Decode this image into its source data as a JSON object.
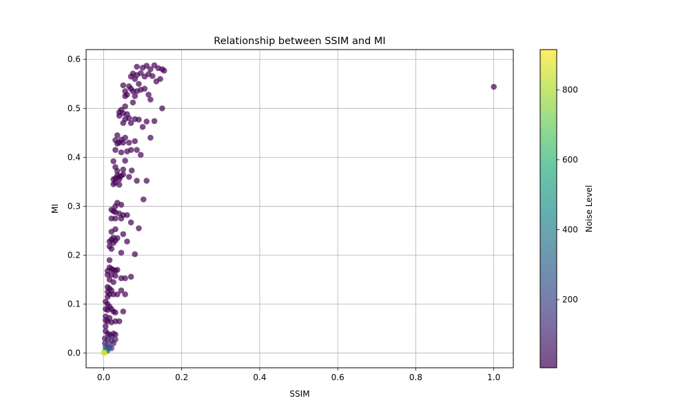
{
  "chart_data": {
    "type": "scatter",
    "title": "Relationship between SSIM and MI",
    "xlabel": "SSIM",
    "ylabel": "MI",
    "xlim": [
      -0.045,
      1.05
    ],
    "ylim": [
      -0.03,
      0.62
    ],
    "xticks": [
      0.0,
      0.2,
      0.4,
      0.6,
      0.8,
      1.0
    ],
    "yticks": [
      0.0,
      0.1,
      0.2,
      0.3,
      0.4,
      0.5,
      0.6
    ],
    "grid": true,
    "colorbar": {
      "label": "Noise Level",
      "range": [
        5,
        915
      ],
      "ticks": [
        200,
        400,
        600,
        800
      ],
      "colormap": "viridis"
    },
    "marker_alpha": 0.7,
    "points": [
      {
        "x": 1.0,
        "y": 0.544,
        "c": 5
      },
      {
        "x": 0.085,
        "y": 0.585,
        "c": 5
      },
      {
        "x": 0.1,
        "y": 0.583,
        "c": 5
      },
      {
        "x": 0.11,
        "y": 0.587,
        "c": 5
      },
      {
        "x": 0.12,
        "y": 0.58,
        "c": 5
      },
      {
        "x": 0.13,
        "y": 0.588,
        "c": 5
      },
      {
        "x": 0.14,
        "y": 0.582,
        "c": 5
      },
      {
        "x": 0.15,
        "y": 0.58,
        "c": 5
      },
      {
        "x": 0.155,
        "y": 0.577,
        "c": 5
      },
      {
        "x": 0.145,
        "y": 0.56,
        "c": 5
      },
      {
        "x": 0.135,
        "y": 0.555,
        "c": 5
      },
      {
        "x": 0.125,
        "y": 0.566,
        "c": 5
      },
      {
        "x": 0.115,
        "y": 0.57,
        "c": 5
      },
      {
        "x": 0.105,
        "y": 0.565,
        "c": 5
      },
      {
        "x": 0.095,
        "y": 0.572,
        "c": 5
      },
      {
        "x": 0.085,
        "y": 0.568,
        "c": 5
      },
      {
        "x": 0.075,
        "y": 0.571,
        "c": 5
      },
      {
        "x": 0.07,
        "y": 0.565,
        "c": 5
      },
      {
        "x": 0.08,
        "y": 0.56,
        "c": 5
      },
      {
        "x": 0.09,
        "y": 0.55,
        "c": 5
      },
      {
        "x": 0.065,
        "y": 0.545,
        "c": 5
      },
      {
        "x": 0.07,
        "y": 0.54,
        "c": 5
      },
      {
        "x": 0.075,
        "y": 0.535,
        "c": 5
      },
      {
        "x": 0.085,
        "y": 0.535,
        "c": 5
      },
      {
        "x": 0.095,
        "y": 0.538,
        "c": 5
      },
      {
        "x": 0.105,
        "y": 0.54,
        "c": 5
      },
      {
        "x": 0.115,
        "y": 0.528,
        "c": 5
      },
      {
        "x": 0.12,
        "y": 0.518,
        "c": 5
      },
      {
        "x": 0.05,
        "y": 0.547,
        "c": 5
      },
      {
        "x": 0.055,
        "y": 0.535,
        "c": 5
      },
      {
        "x": 0.06,
        "y": 0.528,
        "c": 5
      },
      {
        "x": 0.055,
        "y": 0.525,
        "c": 5
      },
      {
        "x": 0.08,
        "y": 0.525,
        "c": 5
      },
      {
        "x": 0.075,
        "y": 0.512,
        "c": 5
      },
      {
        "x": 0.055,
        "y": 0.504,
        "c": 5
      },
      {
        "x": 0.045,
        "y": 0.497,
        "c": 5
      },
      {
        "x": 0.04,
        "y": 0.492,
        "c": 5
      },
      {
        "x": 0.05,
        "y": 0.49,
        "c": 5
      },
      {
        "x": 0.04,
        "y": 0.485,
        "c": 5
      },
      {
        "x": 0.06,
        "y": 0.488,
        "c": 5
      },
      {
        "x": 0.065,
        "y": 0.48,
        "c": 5
      },
      {
        "x": 0.055,
        "y": 0.478,
        "c": 5
      },
      {
        "x": 0.05,
        "y": 0.47,
        "c": 5
      },
      {
        "x": 0.07,
        "y": 0.47,
        "c": 5
      },
      {
        "x": 0.08,
        "y": 0.478,
        "c": 5
      },
      {
        "x": 0.09,
        "y": 0.477,
        "c": 5
      },
      {
        "x": 0.1,
        "y": 0.462,
        "c": 5
      },
      {
        "x": 0.11,
        "y": 0.473,
        "c": 5
      },
      {
        "x": 0.13,
        "y": 0.474,
        "c": 5
      },
      {
        "x": 0.15,
        "y": 0.5,
        "c": 5
      },
      {
        "x": 0.12,
        "y": 0.44,
        "c": 5
      },
      {
        "x": 0.035,
        "y": 0.445,
        "c": 5
      },
      {
        "x": 0.03,
        "y": 0.435,
        "c": 5
      },
      {
        "x": 0.035,
        "y": 0.428,
        "c": 5
      },
      {
        "x": 0.04,
        "y": 0.43,
        "c": 5
      },
      {
        "x": 0.045,
        "y": 0.436,
        "c": 5
      },
      {
        "x": 0.05,
        "y": 0.43,
        "c": 5
      },
      {
        "x": 0.055,
        "y": 0.44,
        "c": 5
      },
      {
        "x": 0.065,
        "y": 0.43,
        "c": 5
      },
      {
        "x": 0.08,
        "y": 0.433,
        "c": 5
      },
      {
        "x": 0.045,
        "y": 0.41,
        "c": 5
      },
      {
        "x": 0.06,
        "y": 0.412,
        "c": 5
      },
      {
        "x": 0.07,
        "y": 0.415,
        "c": 5
      },
      {
        "x": 0.085,
        "y": 0.415,
        "c": 5
      },
      {
        "x": 0.095,
        "y": 0.405,
        "c": 5
      },
      {
        "x": 0.03,
        "y": 0.415,
        "c": 5
      },
      {
        "x": 0.025,
        "y": 0.392,
        "c": 5
      },
      {
        "x": 0.055,
        "y": 0.393,
        "c": 5
      },
      {
        "x": 0.03,
        "y": 0.38,
        "c": 5
      },
      {
        "x": 0.035,
        "y": 0.372,
        "c": 5
      },
      {
        "x": 0.05,
        "y": 0.375,
        "c": 5
      },
      {
        "x": 0.072,
        "y": 0.373,
        "c": 5
      },
      {
        "x": 0.035,
        "y": 0.363,
        "c": 5
      },
      {
        "x": 0.04,
        "y": 0.36,
        "c": 5
      },
      {
        "x": 0.045,
        "y": 0.362,
        "c": 5
      },
      {
        "x": 0.05,
        "y": 0.365,
        "c": 5
      },
      {
        "x": 0.03,
        "y": 0.357,
        "c": 5
      },
      {
        "x": 0.025,
        "y": 0.355,
        "c": 5
      },
      {
        "x": 0.04,
        "y": 0.355,
        "c": 5
      },
      {
        "x": 0.03,
        "y": 0.348,
        "c": 5
      },
      {
        "x": 0.025,
        "y": 0.345,
        "c": 5
      },
      {
        "x": 0.04,
        "y": 0.344,
        "c": 5
      },
      {
        "x": 0.065,
        "y": 0.36,
        "c": 5
      },
      {
        "x": 0.085,
        "y": 0.352,
        "c": 5
      },
      {
        "x": 0.11,
        "y": 0.352,
        "c": 5
      },
      {
        "x": 0.102,
        "y": 0.314,
        "c": 5
      },
      {
        "x": 0.035,
        "y": 0.307,
        "c": 5
      },
      {
        "x": 0.045,
        "y": 0.303,
        "c": 5
      },
      {
        "x": 0.03,
        "y": 0.3,
        "c": 5
      },
      {
        "x": 0.02,
        "y": 0.293,
        "c": 5
      },
      {
        "x": 0.025,
        "y": 0.29,
        "c": 5
      },
      {
        "x": 0.03,
        "y": 0.288,
        "c": 5
      },
      {
        "x": 0.04,
        "y": 0.285,
        "c": 5
      },
      {
        "x": 0.05,
        "y": 0.282,
        "c": 5
      },
      {
        "x": 0.06,
        "y": 0.282,
        "c": 5
      },
      {
        "x": 0.02,
        "y": 0.275,
        "c": 5
      },
      {
        "x": 0.03,
        "y": 0.275,
        "c": 5
      },
      {
        "x": 0.045,
        "y": 0.275,
        "c": 5
      },
      {
        "x": 0.07,
        "y": 0.267,
        "c": 5
      },
      {
        "x": 0.09,
        "y": 0.255,
        "c": 5
      },
      {
        "x": 0.03,
        "y": 0.253,
        "c": 5
      },
      {
        "x": 0.02,
        "y": 0.248,
        "c": 5
      },
      {
        "x": 0.05,
        "y": 0.243,
        "c": 5
      },
      {
        "x": 0.025,
        "y": 0.236,
        "c": 5
      },
      {
        "x": 0.035,
        "y": 0.235,
        "c": 5
      },
      {
        "x": 0.02,
        "y": 0.232,
        "c": 5
      },
      {
        "x": 0.015,
        "y": 0.228,
        "c": 5
      },
      {
        "x": 0.025,
        "y": 0.225,
        "c": 5
      },
      {
        "x": 0.03,
        "y": 0.23,
        "c": 5
      },
      {
        "x": 0.06,
        "y": 0.228,
        "c": 5
      },
      {
        "x": 0.015,
        "y": 0.218,
        "c": 5
      },
      {
        "x": 0.02,
        "y": 0.213,
        "c": 5
      },
      {
        "x": 0.045,
        "y": 0.205,
        "c": 5
      },
      {
        "x": 0.08,
        "y": 0.202,
        "c": 5
      },
      {
        "x": 0.015,
        "y": 0.19,
        "c": 5
      },
      {
        "x": 0.015,
        "y": 0.175,
        "c": 5
      },
      {
        "x": 0.02,
        "y": 0.172,
        "c": 5
      },
      {
        "x": 0.025,
        "y": 0.17,
        "c": 5
      },
      {
        "x": 0.03,
        "y": 0.168,
        "c": 5
      },
      {
        "x": 0.035,
        "y": 0.17,
        "c": 5
      },
      {
        "x": 0.01,
        "y": 0.168,
        "c": 5
      },
      {
        "x": 0.01,
        "y": 0.16,
        "c": 5
      },
      {
        "x": 0.02,
        "y": 0.16,
        "c": 5
      },
      {
        "x": 0.03,
        "y": 0.158,
        "c": 5
      },
      {
        "x": 0.045,
        "y": 0.153,
        "c": 5
      },
      {
        "x": 0.055,
        "y": 0.153,
        "c": 5
      },
      {
        "x": 0.07,
        "y": 0.156,
        "c": 5
      },
      {
        "x": 0.015,
        "y": 0.15,
        "c": 5
      },
      {
        "x": 0.025,
        "y": 0.145,
        "c": 5
      },
      {
        "x": 0.01,
        "y": 0.135,
        "c": 5
      },
      {
        "x": 0.015,
        "y": 0.132,
        "c": 5
      },
      {
        "x": 0.02,
        "y": 0.128,
        "c": 5
      },
      {
        "x": 0.01,
        "y": 0.125,
        "c": 5
      },
      {
        "x": 0.015,
        "y": 0.12,
        "c": 5
      },
      {
        "x": 0.025,
        "y": 0.12,
        "c": 5
      },
      {
        "x": 0.035,
        "y": 0.12,
        "c": 5
      },
      {
        "x": 0.045,
        "y": 0.128,
        "c": 5
      },
      {
        "x": 0.055,
        "y": 0.12,
        "c": 5
      },
      {
        "x": 0.01,
        "y": 0.115,
        "c": 5
      },
      {
        "x": 0.005,
        "y": 0.105,
        "c": 5
      },
      {
        "x": 0.01,
        "y": 0.1,
        "c": 5
      },
      {
        "x": 0.015,
        "y": 0.095,
        "c": 5
      },
      {
        "x": 0.005,
        "y": 0.09,
        "c": 5
      },
      {
        "x": 0.01,
        "y": 0.088,
        "c": 5
      },
      {
        "x": 0.02,
        "y": 0.09,
        "c": 5
      },
      {
        "x": 0.025,
        "y": 0.085,
        "c": 5
      },
      {
        "x": 0.03,
        "y": 0.083,
        "c": 5
      },
      {
        "x": 0.05,
        "y": 0.085,
        "c": 5
      },
      {
        "x": 0.005,
        "y": 0.075,
        "c": 5
      },
      {
        "x": 0.015,
        "y": 0.072,
        "c": 5
      },
      {
        "x": 0.005,
        "y": 0.067,
        "c": 5
      },
      {
        "x": 0.01,
        "y": 0.065,
        "c": 5
      },
      {
        "x": 0.02,
        "y": 0.063,
        "c": 5
      },
      {
        "x": 0.03,
        "y": 0.065,
        "c": 5
      },
      {
        "x": 0.04,
        "y": 0.065,
        "c": 5
      },
      {
        "x": 0.005,
        "y": 0.055,
        "c": 10
      },
      {
        "x": 0.005,
        "y": 0.045,
        "c": 20
      },
      {
        "x": 0.01,
        "y": 0.04,
        "c": 25
      },
      {
        "x": 0.015,
        "y": 0.038,
        "c": 30
      },
      {
        "x": 0.02,
        "y": 0.035,
        "c": 35
      },
      {
        "x": 0.025,
        "y": 0.04,
        "c": 30
      },
      {
        "x": 0.03,
        "y": 0.038,
        "c": 35
      },
      {
        "x": 0.003,
        "y": 0.03,
        "c": 60
      },
      {
        "x": 0.01,
        "y": 0.028,
        "c": 60
      },
      {
        "x": 0.02,
        "y": 0.025,
        "c": 70
      },
      {
        "x": 0.025,
        "y": 0.02,
        "c": 80
      },
      {
        "x": 0.03,
        "y": 0.028,
        "c": 70
      },
      {
        "x": 0.003,
        "y": 0.02,
        "c": 110
      },
      {
        "x": 0.01,
        "y": 0.018,
        "c": 120
      },
      {
        "x": 0.015,
        "y": 0.012,
        "c": 150
      },
      {
        "x": 0.02,
        "y": 0.01,
        "c": 170
      },
      {
        "x": 0.005,
        "y": 0.012,
        "c": 180
      },
      {
        "x": 0.008,
        "y": 0.008,
        "c": 220
      },
      {
        "x": 0.01,
        "y": 0.005,
        "c": 260
      },
      {
        "x": 0.005,
        "y": 0.005,
        "c": 330
      },
      {
        "x": 0.003,
        "y": 0.003,
        "c": 420
      },
      {
        "x": 0.003,
        "y": 0.002,
        "c": 520
      },
      {
        "x": 0.002,
        "y": 0.001,
        "c": 650
      },
      {
        "x": 0.001,
        "y": 0.0005,
        "c": 780
      },
      {
        "x": 0.001,
        "y": 0.0,
        "c": 910
      }
    ]
  }
}
